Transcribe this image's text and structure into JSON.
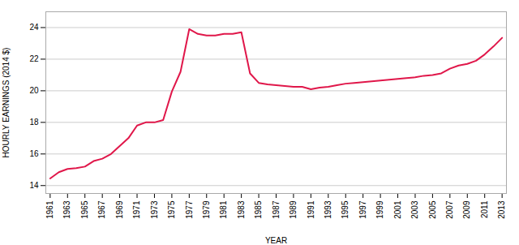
{
  "chart_data": {
    "type": "line",
    "x": [
      1961,
      1962,
      1963,
      1964,
      1965,
      1966,
      1967,
      1968,
      1969,
      1970,
      1971,
      1972,
      1973,
      1974,
      1975,
      1976,
      1977,
      1978,
      1979,
      1980,
      1981,
      1982,
      1983,
      1984,
      1985,
      1986,
      1987,
      1988,
      1989,
      1990,
      1991,
      1992,
      1993,
      1994,
      1995,
      1996,
      1997,
      1998,
      1999,
      2000,
      2001,
      2002,
      2003,
      2004,
      2005,
      2006,
      2007,
      2008,
      2009,
      2010,
      2011,
      2012,
      2013
    ],
    "values": [
      14.45,
      14.85,
      15.05,
      15.1,
      15.2,
      15.55,
      15.7,
      16.0,
      16.5,
      17.0,
      17.8,
      18.0,
      18.0,
      18.15,
      19.95,
      21.2,
      23.9,
      23.6,
      23.5,
      23.5,
      23.6,
      23.6,
      23.7,
      21.1,
      20.5,
      20.4,
      20.35,
      20.3,
      20.25,
      20.25,
      20.1,
      20.2,
      20.25,
      20.35,
      20.45,
      20.5,
      20.55,
      20.6,
      20.65,
      20.7,
      20.75,
      20.8,
      20.85,
      20.95,
      21.0,
      21.1,
      21.4,
      21.6,
      21.7,
      21.9,
      22.3,
      22.8,
      23.35
    ],
    "color": "#e0174a",
    "xlabel": "YEAR",
    "ylabel": "HOURLY EARNINGS (2014 $)",
    "xlim": [
      1960.5,
      2013.5
    ],
    "xticks": [
      1961,
      1963,
      1965,
      1967,
      1969,
      1971,
      1973,
      1975,
      1977,
      1979,
      1981,
      1983,
      1985,
      1987,
      1989,
      1991,
      1993,
      1995,
      1997,
      1999,
      2001,
      2003,
      2005,
      2007,
      2009,
      2011,
      2013
    ],
    "ylim": [
      13.5,
      25.0
    ],
    "yticks": [
      14,
      16,
      18,
      20,
      22,
      24
    ],
    "grid": true
  }
}
